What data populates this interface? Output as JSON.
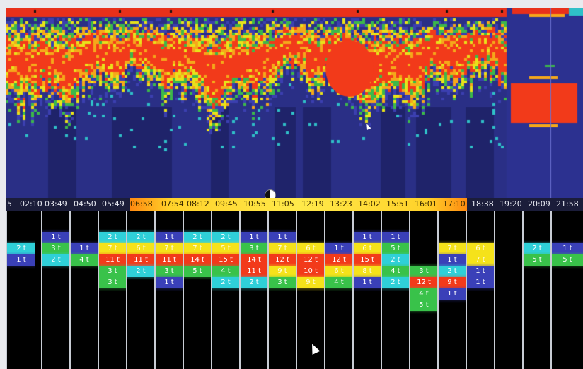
{
  "timeline": {
    "labels": [
      "5",
      "02:10",
      "03:49",
      "04:50",
      "05:49",
      "06:58",
      "07:54",
      "08:12",
      "09:45",
      "10:55",
      "11:05",
      "12:19",
      "13:23",
      "14:02",
      "15:51",
      "16:01",
      "17:10",
      "18:38",
      "19:20",
      "20:09",
      "21:58"
    ]
  },
  "columns": [
    {
      "blocks": [
        {
          "label": "2 t",
          "color": "#2fd0d8"
        },
        {
          "label": "1 t",
          "color": "#3a40b8"
        }
      ]
    },
    {
      "blocks": [
        {
          "label": "1 t",
          "color": "#3a40b8"
        },
        {
          "label": "3 t",
          "color": "#39c24a"
        },
        {
          "label": "2 t",
          "color": "#2fd0d8"
        }
      ]
    },
    {
      "blocks": [
        {
          "label": "1 t",
          "color": "#3a40b8"
        },
        {
          "label": "4 t",
          "color": "#39c24a"
        }
      ]
    },
    {
      "blocks": [
        {
          "label": "2 t",
          "color": "#2fd0d8"
        },
        {
          "label": "7 t",
          "color": "#f5e21a"
        },
        {
          "label": "11 t",
          "color": "#f23a1a"
        },
        {
          "label": "3 t",
          "color": "#39c24a"
        },
        {
          "label": "3 t",
          "color": "#39c24a"
        }
      ]
    },
    {
      "blocks": [
        {
          "label": "2 t",
          "color": "#2fd0d8"
        },
        {
          "label": "6 t",
          "color": "#f5e21a"
        },
        {
          "label": "11 t",
          "color": "#f23a1a"
        },
        {
          "label": "2 t",
          "color": "#2fd0d8"
        }
      ]
    },
    {
      "blocks": [
        {
          "label": "1 t",
          "color": "#3a40b8"
        },
        {
          "label": "7 t",
          "color": "#f5e21a"
        },
        {
          "label": "11 t",
          "color": "#f23a1a"
        },
        {
          "label": "3 t",
          "color": "#39c24a"
        },
        {
          "label": "1 t",
          "color": "#3a40b8"
        }
      ]
    },
    {
      "blocks": [
        {
          "label": "2 t",
          "color": "#2fd0d8"
        },
        {
          "label": "7 t",
          "color": "#f5e21a"
        },
        {
          "label": "14 t",
          "color": "#f23a1a"
        },
        {
          "label": "5 t",
          "color": "#39c24a"
        }
      ]
    },
    {
      "blocks": [
        {
          "label": "2 t",
          "color": "#2fd0d8"
        },
        {
          "label": "5 t",
          "color": "#f5e21a"
        },
        {
          "label": "15 t",
          "color": "#f23a1a"
        },
        {
          "label": "4 t",
          "color": "#39c24a"
        },
        {
          "label": "2 t",
          "color": "#2fd0d8"
        }
      ]
    },
    {
      "blocks": [
        {
          "label": "1 t",
          "color": "#3a40b8"
        },
        {
          "label": "3 t",
          "color": "#39c24a"
        },
        {
          "label": "14 t",
          "color": "#f23a1a"
        },
        {
          "label": "11 t",
          "color": "#f23a1a"
        },
        {
          "label": "2 t",
          "color": "#2fd0d8"
        }
      ]
    },
    {
      "blocks": [
        {
          "label": "1 t",
          "color": "#3a40b8"
        },
        {
          "label": "7 t",
          "color": "#f5e21a"
        },
        {
          "label": "12 t",
          "color": "#f23a1a"
        },
        {
          "label": "9 t",
          "color": "#f5e21a"
        },
        {
          "label": "3 t",
          "color": "#39c24a"
        }
      ]
    },
    {
      "blocks": [
        {
          "label": "6 t",
          "color": "#f5e21a"
        },
        {
          "label": "12 t",
          "color": "#f23a1a"
        },
        {
          "label": "10 t",
          "color": "#f23a1a"
        },
        {
          "label": "9 t",
          "color": "#f5e21a"
        }
      ]
    },
    {
      "blocks": [
        {
          "label": "1 t",
          "color": "#3a40b8"
        },
        {
          "label": "12 t",
          "color": "#f23a1a"
        },
        {
          "label": "6 t",
          "color": "#f5e21a"
        },
        {
          "label": "4 t",
          "color": "#39c24a"
        }
      ]
    },
    {
      "blocks": [
        {
          "label": "1 t",
          "color": "#3a40b8"
        },
        {
          "label": "6 t",
          "color": "#f5e21a"
        },
        {
          "label": "15 t",
          "color": "#f23a1a"
        },
        {
          "label": "8 t",
          "color": "#f5e21a"
        },
        {
          "label": "1 t",
          "color": "#3a40b8"
        }
      ]
    },
    {
      "blocks": [
        {
          "label": "1 t",
          "color": "#3a40b8"
        },
        {
          "label": "5 t",
          "color": "#39c24a"
        },
        {
          "label": "2 t",
          "color": "#2fd0d8"
        },
        {
          "label": "4 t",
          "color": "#39c24a"
        },
        {
          "label": "2 t",
          "color": "#2fd0d8"
        }
      ]
    },
    {
      "blocks": [
        {
          "label": "3 t",
          "color": "#39c24a"
        },
        {
          "label": "12 t",
          "color": "#f23a1a"
        },
        {
          "label": "4 t",
          "color": "#39c24a"
        },
        {
          "label": "5 t",
          "color": "#39c24a"
        }
      ]
    },
    {
      "blocks": [
        {
          "label": "7 t",
          "color": "#f5e21a"
        },
        {
          "label": "1 t",
          "color": "#3a40b8"
        },
        {
          "label": "2 t",
          "color": "#2fd0d8"
        },
        {
          "label": "9 t",
          "color": "#f23a1a"
        },
        {
          "label": "1 t",
          "color": "#3a40b8"
        }
      ]
    },
    {
      "blocks": [
        {
          "label": "6 t",
          "color": "#f5e21a"
        },
        {
          "label": "7 t",
          "color": "#f5e21a"
        },
        {
          "label": "1 t",
          "color": "#3a40b8"
        },
        {
          "label": "1 t",
          "color": "#3a40b8"
        }
      ]
    },
    {
      "blocks": []
    },
    {
      "blocks": [
        {
          "label": "2 t",
          "color": "#2fd0d8"
        },
        {
          "label": "5 t",
          "color": "#39c24a"
        }
      ]
    },
    {
      "blocks": [
        {
          "label": "1 t",
          "color": "#3a40b8"
        },
        {
          "label": "5 t",
          "color": "#39c24a"
        }
      ]
    }
  ],
  "echogram": {
    "palette": [
      "#2a2f86",
      "#3b3fb0",
      "#2fc0c8",
      "#3cb84a",
      "#e8e21a",
      "#f5a81a",
      "#f23a1a"
    ]
  }
}
